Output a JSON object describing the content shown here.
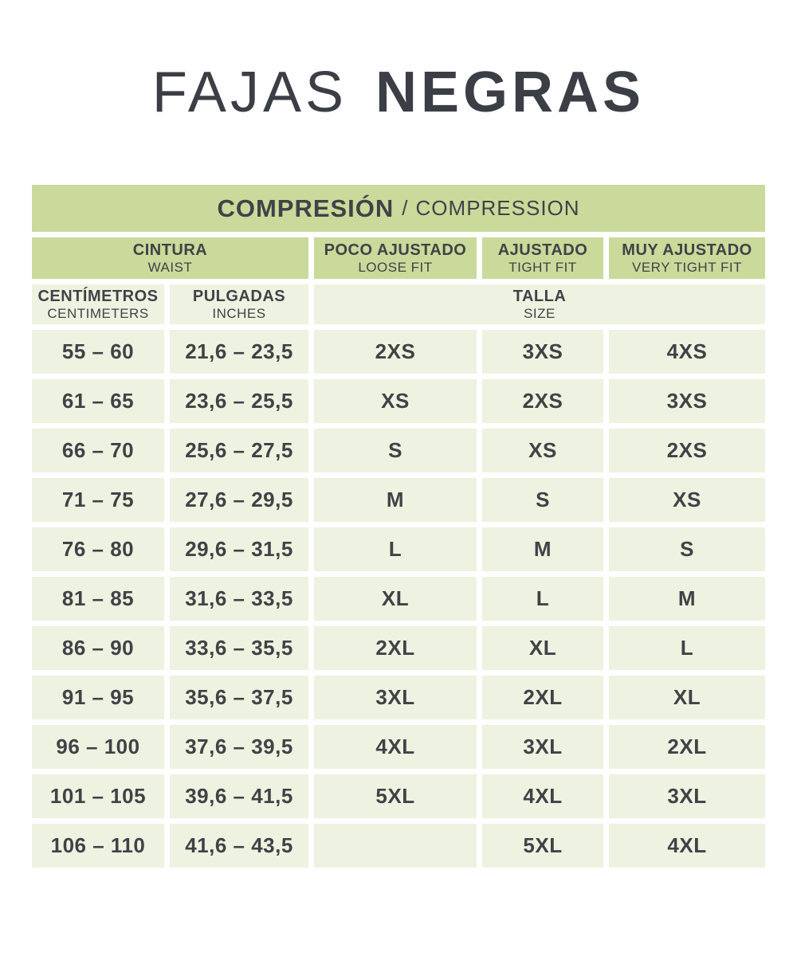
{
  "title": {
    "word_light": "FAJAS",
    "word_bold": "NEGRAS"
  },
  "banner": {
    "title_es": "COMPRESIÓN",
    "separator": "/",
    "title_en": "COMPRESSION"
  },
  "headers": {
    "waist": {
      "es": "CINTURA",
      "en": "WAIST"
    },
    "loose": {
      "es": "POCO AJUSTADO",
      "en": "LOOSE FIT"
    },
    "tight": {
      "es": "AJUSTADO",
      "en": "TIGHT FIT"
    },
    "very_tight": {
      "es": "MUY AJUSTADO",
      "en": "VERY TIGHT FIT"
    },
    "centimeters": {
      "es": "CENTÍMETROS",
      "en": "CENTIMETERS"
    },
    "inches": {
      "es": "PULGADAS",
      "en": "INCHES"
    },
    "size": {
      "es": "TALLA",
      "en": "SIZE"
    }
  },
  "rows": [
    {
      "cm": "55 – 60",
      "inches": "21,6 – 23,5",
      "loose": "2XS",
      "tight": "3XS",
      "very_tight": "4XS"
    },
    {
      "cm": "61 – 65",
      "inches": "23,6 – 25,5",
      "loose": "XS",
      "tight": "2XS",
      "very_tight": "3XS"
    },
    {
      "cm": "66 – 70",
      "inches": "25,6 – 27,5",
      "loose": "S",
      "tight": "XS",
      "very_tight": "2XS"
    },
    {
      "cm": "71 – 75",
      "inches": "27,6 – 29,5",
      "loose": "M",
      "tight": "S",
      "very_tight": "XS"
    },
    {
      "cm": "76 – 80",
      "inches": "29,6 – 31,5",
      "loose": "L",
      "tight": "M",
      "very_tight": "S"
    },
    {
      "cm": "81 – 85",
      "inches": "31,6 – 33,5",
      "loose": "XL",
      "tight": "L",
      "very_tight": "M"
    },
    {
      "cm": "86 – 90",
      "inches": "33,6 – 35,5",
      "loose": "2XL",
      "tight": "XL",
      "very_tight": "L"
    },
    {
      "cm": "91 – 95",
      "inches": "35,6 – 37,5",
      "loose": "3XL",
      "tight": "2XL",
      "very_tight": "XL"
    },
    {
      "cm": "96 – 100",
      "inches": "37,6 – 39,5",
      "loose": "4XL",
      "tight": "3XL",
      "very_tight": "2XL"
    },
    {
      "cm": "101 – 105",
      "inches": "39,6 – 41,5",
      "loose": "5XL",
      "tight": "4XL",
      "very_tight": "3XL"
    },
    {
      "cm": "106 – 110",
      "inches": "41,6 – 43,5",
      "loose": "",
      "tight": "5XL",
      "very_tight": "4XL"
    }
  ],
  "colors": {
    "header_green": "#c9da9b",
    "cell_pale": "#eef2e0",
    "text_dark": "#3f4347",
    "background": "#ffffff"
  },
  "chart_data": {
    "type": "table",
    "title": "FAJAS NEGRAS — COMPRESIÓN / COMPRESSION",
    "columns": [
      "CINTURA / WAIST — CENTÍMETROS / CENTIMETERS",
      "CINTURA / WAIST — PULGADAS / INCHES",
      "POCO AJUSTADO / LOOSE FIT — TALLA / SIZE",
      "AJUSTADO / TIGHT FIT — TALLA / SIZE",
      "MUY AJUSTADO / VERY TIGHT FIT — TALLA / SIZE"
    ],
    "rows": [
      [
        "55 – 60",
        "21,6 – 23,5",
        "2XS",
        "3XS",
        "4XS"
      ],
      [
        "61 – 65",
        "23,6 – 25,5",
        "XS",
        "2XS",
        "3XS"
      ],
      [
        "66 – 70",
        "25,6 – 27,5",
        "S",
        "XS",
        "2XS"
      ],
      [
        "71 – 75",
        "27,6 – 29,5",
        "M",
        "S",
        "XS"
      ],
      [
        "76 – 80",
        "29,6 – 31,5",
        "L",
        "M",
        "S"
      ],
      [
        "81 – 85",
        "31,6 – 33,5",
        "XL",
        "L",
        "M"
      ],
      [
        "86 – 90",
        "33,6 – 35,5",
        "2XL",
        "XL",
        "L"
      ],
      [
        "91 – 95",
        "35,6 – 37,5",
        "3XL",
        "2XL",
        "XL"
      ],
      [
        "96 – 100",
        "37,6 – 39,5",
        "4XL",
        "3XL",
        "2XL"
      ],
      [
        "101 – 105",
        "39,6 – 41,5",
        "5XL",
        "4XL",
        "3XL"
      ],
      [
        "106 – 110",
        "41,6 – 43,5",
        "",
        "5XL",
        "4XL"
      ]
    ]
  }
}
